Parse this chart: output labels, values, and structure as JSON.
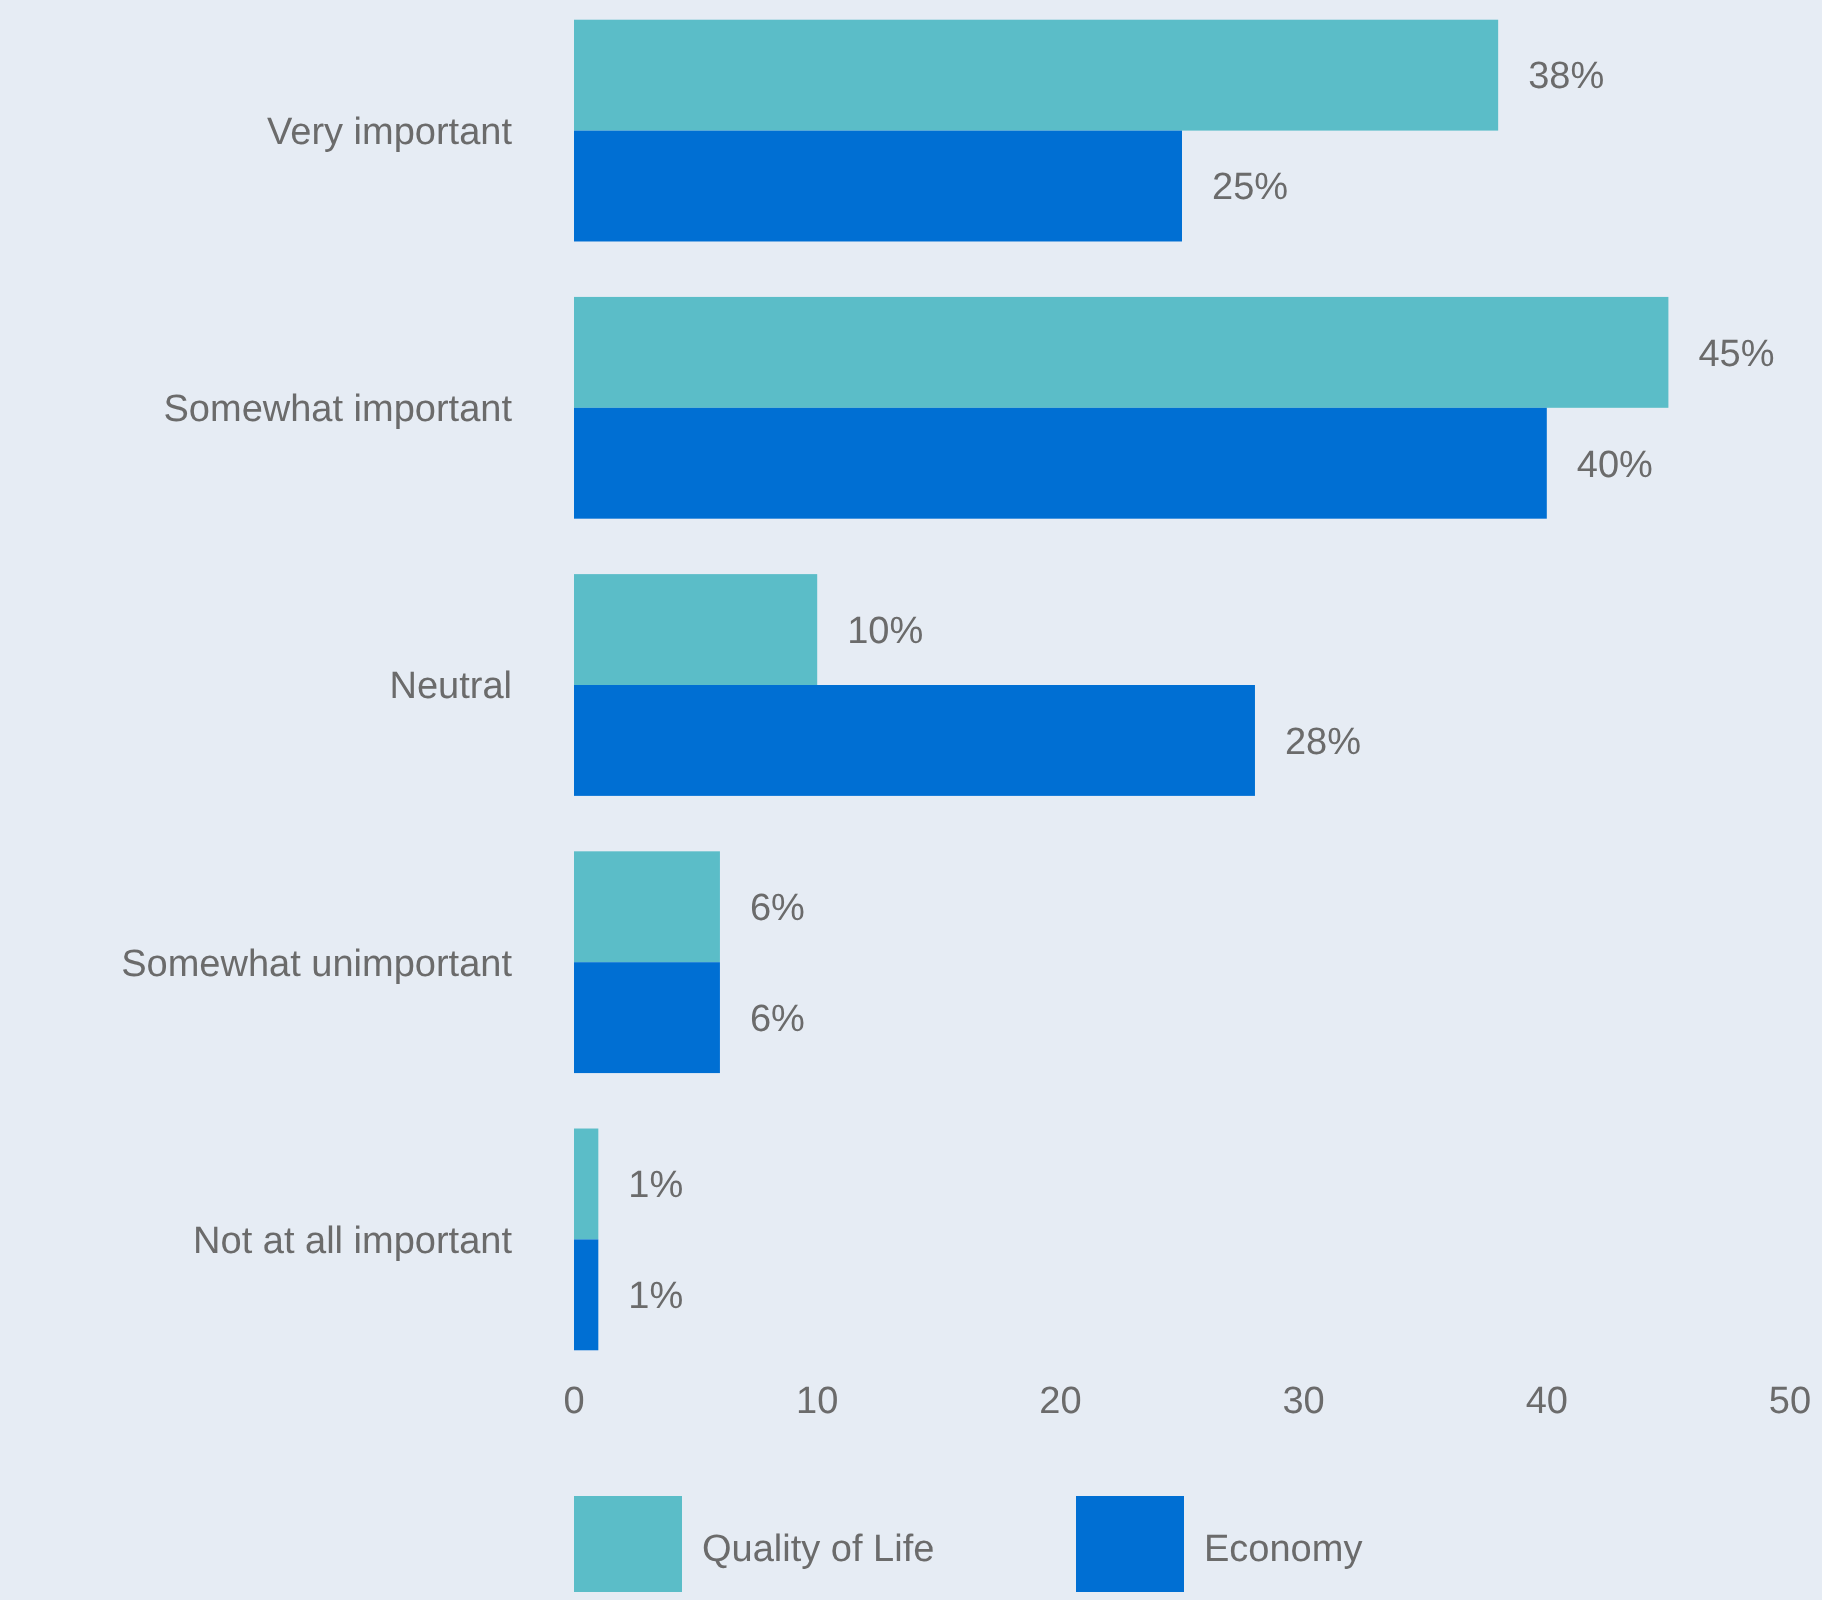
{
  "chart_data": {
    "type": "bar",
    "orientation": "horizontal",
    "categories": [
      "Very important",
      "Somewhat important",
      "Neutral",
      "Somewhat unimportant",
      "Not at all important"
    ],
    "series": [
      {
        "name": "Quality of Life",
        "color": "#5bbdc8",
        "values": [
          38,
          45,
          10,
          6,
          1
        ],
        "value_labels": [
          "38%",
          "45%",
          "10%",
          "6%",
          "1%"
        ]
      },
      {
        "name": "Economy",
        "color": "#006fd3",
        "values": [
          25,
          40,
          28,
          6,
          1
        ],
        "value_labels": [
          "25%",
          "40%",
          "28%",
          "6%",
          "1%"
        ]
      }
    ],
    "xlim": [
      0,
      50
    ],
    "xticks": [
      0,
      10,
      20,
      30,
      40,
      50
    ],
    "grid": false,
    "legend": "bottom"
  }
}
